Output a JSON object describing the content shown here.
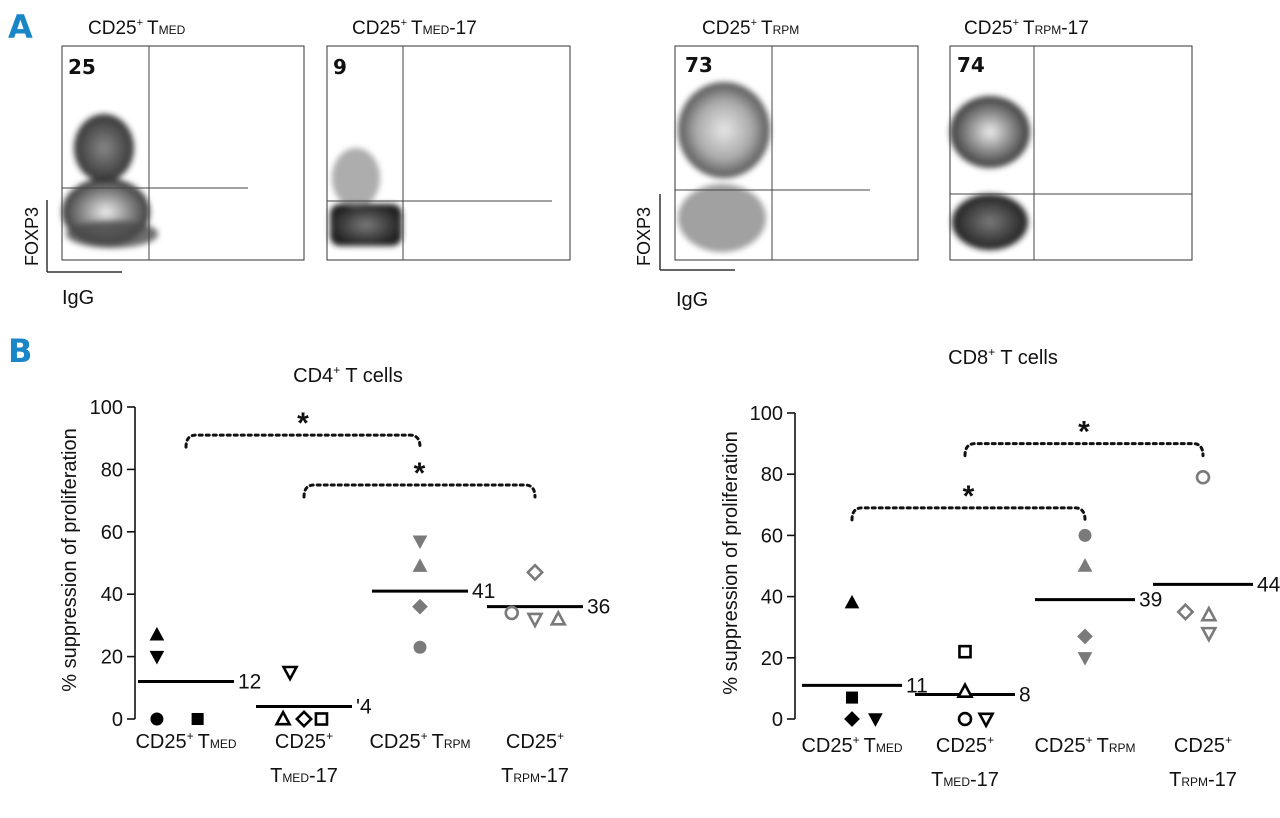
{
  "panel_a": {
    "letter": "A",
    "x_axis_label": "IgG",
    "y_axis_label": "FOXP3",
    "plots": [
      {
        "title": "CD25⁺ Tᴍᴇᴅ",
        "title_main": "CD25",
        "title_sup": "+",
        "title_t": "T",
        "title_sub": "MED",
        "title_suffix": "",
        "value": "25",
        "show_axes": true
      },
      {
        "title": "CD25⁺ Tᴍᴇᴅ-17",
        "title_main": "CD25",
        "title_sup": "+",
        "title_t": "T",
        "title_sub": "MED",
        "title_suffix": "-17",
        "value": "9",
        "show_axes": false
      },
      {
        "title": "CD25⁺ Tʀᴘᴍ",
        "title_main": "CD25",
        "title_sup": "+",
        "title_t": "T",
        "title_sub": "RPM",
        "title_suffix": "",
        "value": "73",
        "show_axes": true
      },
      {
        "title": "CD25⁺ Tʀᴘᴍ-17",
        "title_main": "CD25",
        "title_sup": "+",
        "title_t": "T",
        "title_sub": "RPM",
        "title_suffix": "-17",
        "value": "74",
        "show_axes": false
      }
    ]
  },
  "panel_b": {
    "letter": "B",
    "ylabel": "% suppression of proliferation",
    "significance_mark": "*",
    "category_labels": [
      {
        "line1_main": "CD25",
        "line1_sup": "+",
        "line1_t": "T",
        "line1_sub": "MED",
        "line1_suffix": "",
        "line2_t": "",
        "line2_sub": "",
        "line2_suffix": ""
      },
      {
        "line1_main": "CD25",
        "line1_sup": "+",
        "line1_t": "",
        "line1_sub": "",
        "line1_suffix": "",
        "line2_t": "T",
        "line2_sub": "MED",
        "line2_suffix": "-17"
      },
      {
        "line1_main": "CD25",
        "line1_sup": "+",
        "line1_t": "T",
        "line1_sub": "RPM",
        "line1_suffix": "",
        "line2_t": "",
        "line2_sub": "",
        "line2_suffix": ""
      },
      {
        "line1_main": "CD25",
        "line1_sup": "+",
        "line1_t": "",
        "line1_sub": "",
        "line1_suffix": "",
        "line2_t": "T",
        "line2_sub": "RPM",
        "line2_suffix": "-17"
      }
    ]
  },
  "chart_data": [
    {
      "type": "scatter",
      "title": "CD4⁺ T cells",
      "title_main": "CD4",
      "title_sup": "+",
      "title_suffix": " T cells",
      "ylabel": "% suppression of proliferation",
      "ylim": [
        0,
        100
      ],
      "yticks": [
        0,
        20,
        40,
        60,
        80,
        100
      ],
      "categories": [
        "CD25⁺ Tᴍᴇᴅ",
        "CD25⁺ Tᴍᴇᴅ-17",
        "CD25⁺ Tʀᴘᴍ",
        "CD25⁺ Tʀᴘᴍ-17"
      ],
      "means": [
        12,
        4,
        41,
        36
      ],
      "mean_labels": [
        "12",
        "'4",
        "41",
        "36"
      ],
      "points": [
        {
          "category": 0,
          "offset": -0.25,
          "y": 27,
          "marker": "triangle-up",
          "fill": "filled",
          "color": "#000000"
        },
        {
          "category": 0,
          "offset": -0.25,
          "y": 20,
          "marker": "triangle-down",
          "fill": "filled",
          "color": "#000000"
        },
        {
          "category": 0,
          "offset": -0.25,
          "y": 0,
          "marker": "circle",
          "fill": "filled",
          "color": "#000000"
        },
        {
          "category": 0,
          "offset": 0.1,
          "y": 0,
          "marker": "square",
          "fill": "filled",
          "color": "#000000"
        },
        {
          "category": 1,
          "offset": -0.12,
          "y": 15,
          "marker": "triangle-down",
          "fill": "open",
          "color": "#000000"
        },
        {
          "category": 1,
          "offset": -0.18,
          "y": 0,
          "marker": "triangle-up",
          "fill": "open",
          "color": "#000000"
        },
        {
          "category": 1,
          "offset": 0.0,
          "y": 0,
          "marker": "diamond",
          "fill": "open",
          "color": "#000000"
        },
        {
          "category": 1,
          "offset": 0.15,
          "y": 0,
          "marker": "square",
          "fill": "open",
          "color": "#000000"
        },
        {
          "category": 2,
          "offset": 0.0,
          "y": 57,
          "marker": "triangle-down",
          "fill": "filled",
          "color": "#7a7a7a"
        },
        {
          "category": 2,
          "offset": 0.0,
          "y": 49,
          "marker": "triangle-up",
          "fill": "filled",
          "color": "#7a7a7a"
        },
        {
          "category": 2,
          "offset": 0.0,
          "y": 36,
          "marker": "diamond",
          "fill": "filled",
          "color": "#7a7a7a"
        },
        {
          "category": 2,
          "offset": 0.0,
          "y": 23,
          "marker": "circle",
          "fill": "filled",
          "color": "#7a7a7a"
        },
        {
          "category": 3,
          "offset": 0.0,
          "y": 47,
          "marker": "diamond",
          "fill": "open",
          "color": "#7a7a7a"
        },
        {
          "category": 3,
          "offset": -0.2,
          "y": 34,
          "marker": "circle",
          "fill": "open",
          "color": "#7a7a7a"
        },
        {
          "category": 3,
          "offset": 0.0,
          "y": 32,
          "marker": "triangle-down",
          "fill": "open",
          "color": "#7a7a7a"
        },
        {
          "category": 3,
          "offset": 0.2,
          "y": 32,
          "marker": "triangle-up",
          "fill": "open",
          "color": "#7a7a7a"
        }
      ],
      "significance": [
        {
          "from": 0,
          "to": 2,
          "y": 91,
          "label": "*"
        },
        {
          "from": 1,
          "to": 3,
          "y": 75,
          "label": "*"
        }
      ]
    },
    {
      "type": "scatter",
      "title": "CD8⁺ T cells",
      "title_main": "CD8",
      "title_sup": "+",
      "title_suffix": " T cells",
      "ylabel": "% suppression of proliferation",
      "ylim": [
        0,
        100
      ],
      "yticks": [
        0,
        20,
        40,
        60,
        80,
        100
      ],
      "categories": [
        "CD25⁺ Tᴍᴇᴅ",
        "CD25⁺ Tᴍᴇᴅ-17",
        "CD25⁺ Tʀᴘᴍ",
        "CD25⁺ Tʀᴘᴍ-17"
      ],
      "means": [
        11,
        8,
        39,
        44
      ],
      "mean_labels": [
        "11",
        "8",
        "39",
        "44"
      ],
      "points": [
        {
          "category": 0,
          "offset": 0.0,
          "y": 38,
          "marker": "triangle-up",
          "fill": "filled",
          "color": "#000000"
        },
        {
          "category": 0,
          "offset": 0.0,
          "y": 7,
          "marker": "square",
          "fill": "filled",
          "color": "#000000"
        },
        {
          "category": 0,
          "offset": 0.0,
          "y": 0,
          "marker": "diamond",
          "fill": "filled",
          "color": "#000000"
        },
        {
          "category": 0,
          "offset": 0.2,
          "y": 0,
          "marker": "triangle-down",
          "fill": "filled",
          "color": "#000000"
        },
        {
          "category": 1,
          "offset": 0.0,
          "y": 22,
          "marker": "square",
          "fill": "open",
          "color": "#000000"
        },
        {
          "category": 1,
          "offset": 0.0,
          "y": 9,
          "marker": "triangle-up",
          "fill": "open",
          "color": "#000000"
        },
        {
          "category": 1,
          "offset": 0.0,
          "y": 0,
          "marker": "circle",
          "fill": "open",
          "color": "#000000"
        },
        {
          "category": 1,
          "offset": 0.18,
          "y": 0,
          "marker": "triangle-down",
          "fill": "open",
          "color": "#000000"
        },
        {
          "category": 2,
          "offset": 0.0,
          "y": 60,
          "marker": "circle",
          "fill": "filled",
          "color": "#7a7a7a"
        },
        {
          "category": 2,
          "offset": 0.0,
          "y": 50,
          "marker": "triangle-up",
          "fill": "filled",
          "color": "#7a7a7a"
        },
        {
          "category": 2,
          "offset": 0.0,
          "y": 27,
          "marker": "diamond",
          "fill": "filled",
          "color": "#7a7a7a"
        },
        {
          "category": 2,
          "offset": 0.0,
          "y": 20,
          "marker": "triangle-down",
          "fill": "filled",
          "color": "#7a7a7a"
        },
        {
          "category": 3,
          "offset": 0.0,
          "y": 79,
          "marker": "circle",
          "fill": "open",
          "color": "#7a7a7a"
        },
        {
          "category": 3,
          "offset": -0.15,
          "y": 35,
          "marker": "diamond",
          "fill": "open",
          "color": "#7a7a7a"
        },
        {
          "category": 3,
          "offset": 0.05,
          "y": 34,
          "marker": "triangle-up",
          "fill": "open",
          "color": "#7a7a7a"
        },
        {
          "category": 3,
          "offset": 0.05,
          "y": 28,
          "marker": "triangle-down",
          "fill": "open",
          "color": "#7a7a7a"
        }
      ],
      "significance": [
        {
          "from": 0,
          "to": 2,
          "y": 69,
          "label": "*"
        },
        {
          "from": 1,
          "to": 3,
          "y": 90,
          "label": "*"
        }
      ]
    }
  ]
}
